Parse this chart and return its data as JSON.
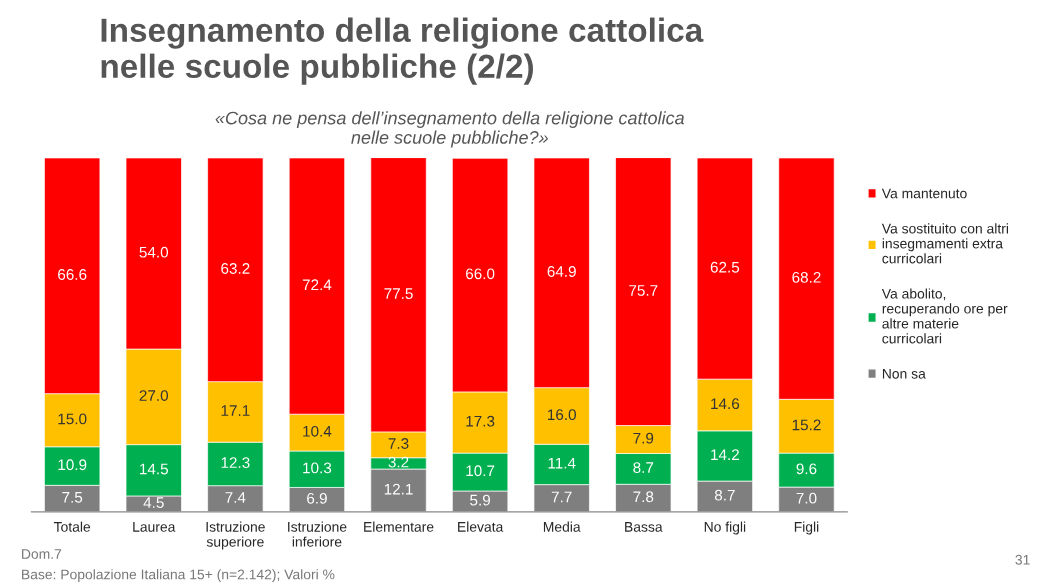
{
  "chart_data": {
    "type": "bar",
    "stacked": true,
    "title": "Insegnamento della religione cattolica\nnelle scuole pubbliche (2/2)",
    "subtitle": "«Cosa ne pensa dell’insegnamento della religione cattolica\nnelle scuole pubbliche?»",
    "categories": [
      "Totale",
      "Laurea",
      "Istruzione\nsuperiore",
      "Istruzione\ninferiore",
      "Elementare",
      "Elevata",
      "Media",
      "Bassa",
      "No figli",
      "Figli"
    ],
    "series": [
      {
        "name": "Non sa",
        "color": "#7f7f7f",
        "values": [
          7.5,
          4.5,
          7.4,
          6.9,
          12.1,
          5.9,
          7.7,
          7.8,
          8.7,
          7.0
        ],
        "value_labels": [
          "7.5",
          "4.5",
          "7.4",
          "6.9",
          "12.1",
          "5.9",
          "7.7",
          "7.8",
          "8.7",
          "7.0"
        ]
      },
      {
        "name": "Va abolito,\nrecuperando ore per\naltre materie\ncurricolari",
        "color": "#00b050",
        "values": [
          10.9,
          14.5,
          12.3,
          10.3,
          3.2,
          10.7,
          11.4,
          8.7,
          14.2,
          9.6
        ],
        "value_labels": [
          "10.9",
          "14.5",
          "12.3",
          "10.3",
          "3.2",
          "10.7",
          "11.4",
          "8.7",
          "14.2",
          "9.6"
        ]
      },
      {
        "name": "Va sostituito con altri\ninsegmamenti extra\ncurricolari",
        "color": "#ffc000",
        "values": [
          15.0,
          27.0,
          17.1,
          10.4,
          7.3,
          17.3,
          16.0,
          7.9,
          14.6,
          15.2
        ],
        "value_labels": [
          "15.0",
          "27.0",
          "17.1",
          "10.4",
          "7.3",
          "17.3",
          "16.0",
          "7.9",
          "14.6",
          "15.2"
        ]
      },
      {
        "name": "Va mantenuto",
        "color": "#ff0000",
        "values": [
          66.6,
          54.0,
          63.2,
          72.4,
          77.5,
          66.0,
          64.9,
          75.7,
          62.5,
          68.2
        ],
        "value_labels": [
          "66.6",
          "54.0",
          "63.2",
          "72.4",
          "77.5",
          "66.0",
          "64.9",
          "75.7",
          "62.5",
          "68.2"
        ]
      }
    ],
    "ylim": [
      0,
      100
    ],
    "tick_labels": "x",
    "legend": "right",
    "annotations": [
      "Dom.7",
      "Base: Popolazione Italiana 15+ (n=2.142); Valori %",
      "31"
    ]
  }
}
